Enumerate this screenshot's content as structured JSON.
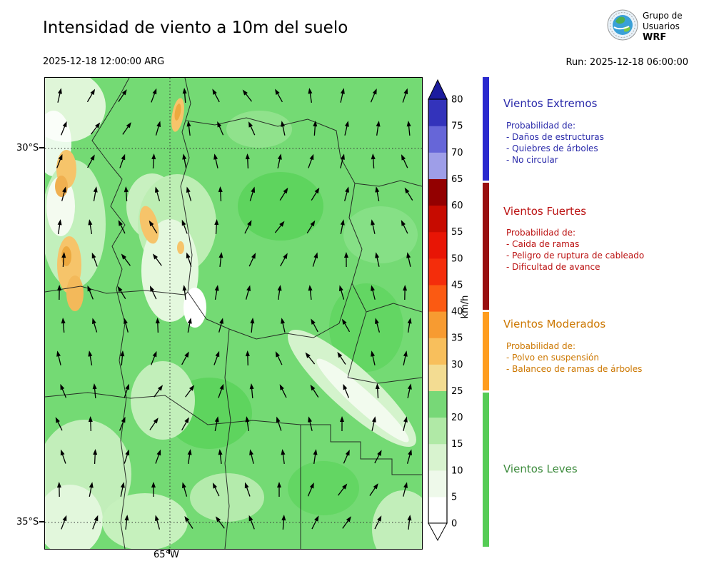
{
  "header": {
    "title": "Intensidad de viento a 10m del suelo",
    "datetime": "2025-12-18 12:00:00 ARG",
    "run_label": "Run: 2025-12-18 06:00:00",
    "logo": {
      "line1": "Grupo de",
      "line2": "Usuarios",
      "line3": "WRF"
    }
  },
  "map": {
    "lat_labels": [
      "30°S",
      "35°S"
    ],
    "lon_label": "65°W"
  },
  "colorbar": {
    "unit": "km/h",
    "ticks": [
      0,
      5,
      10,
      15,
      20,
      25,
      30,
      35,
      40,
      45,
      50,
      55,
      60,
      65,
      70,
      75,
      80
    ],
    "colors": [
      "#ffffff",
      "#eef9ea",
      "#d8f3cf",
      "#b0e9a6",
      "#77d877",
      "#f3dc92",
      "#f8bf5c",
      "#f79b31",
      "#fb5a12",
      "#f42d0b",
      "#e81505",
      "#c70b00",
      "#930000",
      "#9e9ee8",
      "#6666d8",
      "#3333bb"
    ],
    "arrow_top": "#1c1c9e",
    "arrow_bottom": "#ffffff"
  },
  "legend": {
    "sections": [
      {
        "title": "Vientos Extremos",
        "color": "#2a2aaa",
        "bar_color": "#2a2ace",
        "intro": "Probabilidad de:",
        "items": [
          "- Daños de estructuras",
          "- Quiebres de árboles",
          "- No circular"
        ]
      },
      {
        "title": "Vientos Fuertes",
        "color": "#bb1111",
        "bar_color": "#991010",
        "intro": "Probabilidad de:",
        "items": [
          "- Caida de ramas",
          "- Peligro de ruptura de cableado",
          "- Dificultad de avance"
        ]
      },
      {
        "title": "Vientos Moderados",
        "color": "#cc7700",
        "bar_color": "#ff9d1e",
        "intro": "Probabilidad de:",
        "items": [
          "- Polvo en suspensión",
          "- Balanceo de ramas de árboles"
        ]
      },
      {
        "title": "Vientos Leves",
        "color": "#3d8b3d",
        "bar_color": "#55cc55",
        "intro": "",
        "items": []
      }
    ]
  }
}
